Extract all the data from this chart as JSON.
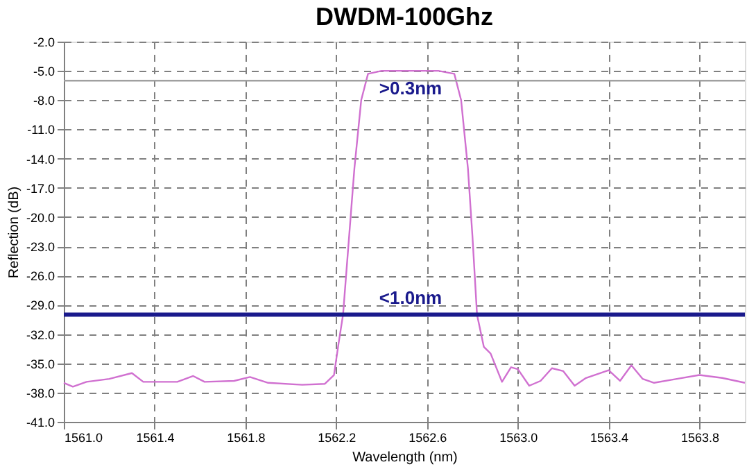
{
  "chart_data": {
    "type": "line",
    "title": "DWDM-100Ghz",
    "xlabel": "Wavelength (nm)",
    "ylabel": "Reflection (dB)",
    "xlim": [
      1561.0,
      1564.0
    ],
    "xticks": [
      {
        "value": 1561.0,
        "label": "1561.0"
      },
      1561.4,
      1561.8,
      1562.2,
      1562.6,
      {
        "value": 1563.0,
        "label": "1563.0"
      },
      1563.4,
      1563.8
    ],
    "ylim": [
      -41.0,
      -2.0
    ],
    "yticks": [
      {
        "value": -2.0,
        "label": "-2.0"
      },
      {
        "value": -5.0,
        "label": "-5.0"
      },
      {
        "value": -8.0,
        "label": "-8.0"
      },
      {
        "value": -11.0,
        "label": "-11.0"
      },
      {
        "value": -14.0,
        "label": "-14.0"
      },
      {
        "value": -17.0,
        "label": "-17.0"
      },
      {
        "value": -20.0,
        "label": "-20.0"
      },
      {
        "value": -23.0,
        "label": "-23.0"
      },
      {
        "value": -26.0,
        "label": "-26.0"
      },
      {
        "value": -29.0,
        "label": "-29.0"
      },
      {
        "value": -32.0,
        "label": "-32.0"
      },
      {
        "value": -35.0,
        "label": "-35.0"
      },
      {
        "value": -38.0,
        "label": "-38.0"
      },
      {
        "value": -41.0,
        "label": "-41.0"
      }
    ],
    "grid": true,
    "x": [
      1561.0,
      1561.04,
      1561.1,
      1561.2,
      1561.3,
      1561.35,
      1561.5,
      1561.57,
      1561.62,
      1561.75,
      1561.82,
      1561.9,
      1562.05,
      1562.15,
      1562.19,
      1562.21,
      1562.23,
      1562.25,
      1562.28,
      1562.31,
      1562.34,
      1562.4,
      1562.65,
      1562.72,
      1562.75,
      1562.78,
      1562.8,
      1562.82,
      1562.85,
      1562.88,
      1562.93,
      1562.97,
      1563.0,
      1563.05,
      1563.1,
      1563.15,
      1563.2,
      1563.25,
      1563.3,
      1563.4,
      1563.45,
      1563.5,
      1563.55,
      1563.6,
      1563.7,
      1563.8,
      1563.9,
      1564.0
    ],
    "series": [
      {
        "color": "#d070d0",
        "values": [
          -37.0,
          -37.4,
          -36.9,
          -36.6,
          -36.0,
          -36.9,
          -36.9,
          -36.3,
          -36.9,
          -36.8,
          -36.4,
          -37.0,
          -37.2,
          -37.1,
          -36.2,
          -33.0,
          -30.0,
          -24.0,
          -15.0,
          -8.0,
          -5.3,
          -5.0,
          -5.0,
          -5.3,
          -8.0,
          -15.0,
          -22.0,
          -30.0,
          -33.3,
          -34.0,
          -36.9,
          -35.4,
          -35.6,
          -37.3,
          -36.8,
          -35.5,
          -35.8,
          -37.3,
          -36.5,
          -35.7,
          -36.8,
          -35.2,
          -36.6,
          -37.0,
          -36.6,
          -36.2,
          -36.5,
          -37.0
        ]
      }
    ],
    "ref_lines": [
      {
        "axis": "y",
        "value": -30.0,
        "color": "#1a1a8c",
        "line_style": "solid"
      },
      {
        "axis": "y",
        "value": -6.0,
        "color": "#a0a0a0",
        "line_style": "solid"
      }
    ],
    "annotations": [
      ">0.3nm",
      "<1.0nm"
    ]
  }
}
